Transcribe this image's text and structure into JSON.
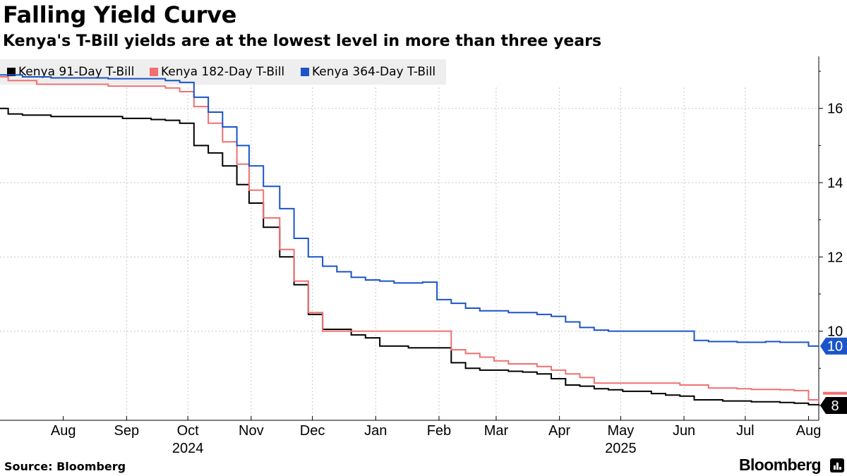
{
  "header": {
    "title": "Falling Yield Curve",
    "subtitle": "Kenya's T-Bill yields are at the lowest level in more than three years"
  },
  "footer": {
    "source": "Source: Bloomberg",
    "brand": "Bloomberg"
  },
  "chart_data": {
    "type": "line",
    "title": "Falling Yield Curve",
    "subtitle": "Kenya's T-Bill yields are at the lowest level in more than three years",
    "xlabel": "",
    "ylabel": "",
    "ylim": [
      7.6,
      17.4
    ],
    "yticks": [
      16,
      14,
      12,
      10
    ],
    "ytick_labels": [
      "16",
      "14",
      "12",
      "10"
    ],
    "x_start": "2024-07-01",
    "x_end": "2025-08-06",
    "xticks": [
      {
        "label": "Aug",
        "date": "2024-08-01"
      },
      {
        "label": "Sep",
        "date": "2024-09-01"
      },
      {
        "label": "Oct",
        "date": "2024-10-01"
      },
      {
        "label": "Nov",
        "date": "2024-11-01"
      },
      {
        "label": "Dec",
        "date": "2024-12-01"
      },
      {
        "label": "Jan",
        "date": "2025-01-01"
      },
      {
        "label": "Feb",
        "date": "2025-02-01"
      },
      {
        "label": "Mar",
        "date": "2025-03-01"
      },
      {
        "label": "Apr",
        "date": "2025-04-01"
      },
      {
        "label": "May",
        "date": "2025-05-01"
      },
      {
        "label": "Jun",
        "date": "2025-06-01"
      },
      {
        "label": "Jul",
        "date": "2025-07-01"
      },
      {
        "label": "Aug",
        "date": "2025-08-01"
      }
    ],
    "year_labels": [
      {
        "label": "2024",
        "date": "2024-10-01"
      },
      {
        "label": "2025",
        "date": "2025-05-01"
      }
    ],
    "grid": true,
    "legend_position": "top-left",
    "end_labels": [
      {
        "text": "10",
        "value": 9.6,
        "color": "#1a54c8"
      },
      {
        "text": "8",
        "value": 8.0,
        "color": "#000000"
      }
    ],
    "series": [
      {
        "name": "Kenya 91-Day T-Bill",
        "color": "#000000",
        "points": [
          [
            "2024-07-01",
            16.0
          ],
          [
            "2024-07-05",
            15.85
          ],
          [
            "2024-07-12",
            15.82
          ],
          [
            "2024-07-26",
            15.78
          ],
          [
            "2024-08-30",
            15.73
          ],
          [
            "2024-09-13",
            15.7
          ],
          [
            "2024-09-20",
            15.68
          ],
          [
            "2024-09-27",
            15.6
          ],
          [
            "2024-10-04",
            15.0
          ],
          [
            "2024-10-11",
            14.8
          ],
          [
            "2024-10-18",
            14.45
          ],
          [
            "2024-10-25",
            13.95
          ],
          [
            "2024-10-31",
            13.45
          ],
          [
            "2024-11-07",
            12.8
          ],
          [
            "2024-11-15",
            12.0
          ],
          [
            "2024-11-22",
            11.25
          ],
          [
            "2024-11-29",
            10.45
          ],
          [
            "2024-12-06",
            10.05
          ],
          [
            "2024-12-20",
            9.9
          ],
          [
            "2024-12-27",
            9.82
          ],
          [
            "2025-01-03",
            9.6
          ],
          [
            "2025-01-17",
            9.55
          ],
          [
            "2025-01-31",
            9.55
          ],
          [
            "2025-02-07",
            9.15
          ],
          [
            "2025-02-14",
            9.0
          ],
          [
            "2025-02-21",
            8.95
          ],
          [
            "2025-03-07",
            8.92
          ],
          [
            "2025-03-14",
            8.9
          ],
          [
            "2025-03-21",
            8.85
          ],
          [
            "2025-03-28",
            8.72
          ],
          [
            "2025-04-04",
            8.55
          ],
          [
            "2025-04-11",
            8.52
          ],
          [
            "2025-04-18",
            8.45
          ],
          [
            "2025-04-25",
            8.42
          ],
          [
            "2025-05-02",
            8.38
          ],
          [
            "2025-05-16",
            8.32
          ],
          [
            "2025-05-23",
            8.28
          ],
          [
            "2025-05-30",
            8.25
          ],
          [
            "2025-06-06",
            8.15
          ],
          [
            "2025-06-20",
            8.12
          ],
          [
            "2025-07-04",
            8.1
          ],
          [
            "2025-07-18",
            8.08
          ],
          [
            "2025-07-25",
            8.06
          ],
          [
            "2025-08-01",
            8.02
          ],
          [
            "2025-08-06",
            8.0
          ]
        ]
      },
      {
        "name": "Kenya 182-Day T-Bill",
        "color": "#f07070",
        "points": [
          [
            "2024-07-01",
            16.85
          ],
          [
            "2024-07-05",
            16.75
          ],
          [
            "2024-07-19",
            16.65
          ],
          [
            "2024-08-23",
            16.6
          ],
          [
            "2024-09-20",
            16.55
          ],
          [
            "2024-09-27",
            16.45
          ],
          [
            "2024-10-04",
            16.05
          ],
          [
            "2024-10-11",
            15.6
          ],
          [
            "2024-10-18",
            15.1
          ],
          [
            "2024-10-25",
            14.5
          ],
          [
            "2024-10-31",
            13.8
          ],
          [
            "2024-11-07",
            13.05
          ],
          [
            "2024-11-15",
            12.2
          ],
          [
            "2024-11-22",
            11.35
          ],
          [
            "2024-11-29",
            10.5
          ],
          [
            "2024-12-06",
            10.0
          ],
          [
            "2025-01-31",
            10.0
          ],
          [
            "2025-02-07",
            9.5
          ],
          [
            "2025-02-14",
            9.4
          ],
          [
            "2025-02-21",
            9.3
          ],
          [
            "2025-02-28",
            9.2
          ],
          [
            "2025-03-07",
            9.12
          ],
          [
            "2025-03-21",
            9.05
          ],
          [
            "2025-03-28",
            8.95
          ],
          [
            "2025-04-04",
            8.85
          ],
          [
            "2025-04-11",
            8.75
          ],
          [
            "2025-04-18",
            8.6
          ],
          [
            "2025-05-02",
            8.6
          ],
          [
            "2025-05-30",
            8.55
          ],
          [
            "2025-06-13",
            8.47
          ],
          [
            "2025-06-27",
            8.45
          ],
          [
            "2025-07-04",
            8.43
          ],
          [
            "2025-07-18",
            8.42
          ],
          [
            "2025-07-25",
            8.4
          ],
          [
            "2025-08-01",
            8.15
          ],
          [
            "2025-08-06",
            8.1
          ]
        ]
      },
      {
        "name": "Kenya 364-Day T-Bill",
        "color": "#1a54c8",
        "points": [
          [
            "2024-07-01",
            16.9
          ],
          [
            "2024-07-12",
            16.85
          ],
          [
            "2024-07-26",
            16.82
          ],
          [
            "2024-08-23",
            16.8
          ],
          [
            "2024-09-20",
            16.75
          ],
          [
            "2024-09-27",
            16.7
          ],
          [
            "2024-10-04",
            16.3
          ],
          [
            "2024-10-11",
            15.9
          ],
          [
            "2024-10-18",
            15.5
          ],
          [
            "2024-10-25",
            15.0
          ],
          [
            "2024-10-31",
            14.45
          ],
          [
            "2024-11-07",
            13.9
          ],
          [
            "2024-11-15",
            13.3
          ],
          [
            "2024-11-22",
            12.5
          ],
          [
            "2024-11-29",
            12.0
          ],
          [
            "2024-12-06",
            11.75
          ],
          [
            "2024-12-13",
            11.6
          ],
          [
            "2024-12-20",
            11.45
          ],
          [
            "2024-12-27",
            11.38
          ],
          [
            "2025-01-03",
            11.35
          ],
          [
            "2025-01-10",
            11.3
          ],
          [
            "2025-01-24",
            11.32
          ],
          [
            "2025-01-31",
            10.85
          ],
          [
            "2025-02-07",
            10.75
          ],
          [
            "2025-02-14",
            10.62
          ],
          [
            "2025-02-21",
            10.55
          ],
          [
            "2025-03-07",
            10.5
          ],
          [
            "2025-03-21",
            10.45
          ],
          [
            "2025-03-28",
            10.4
          ],
          [
            "2025-04-04",
            10.25
          ],
          [
            "2025-04-11",
            10.1
          ],
          [
            "2025-04-18",
            10.03
          ],
          [
            "2025-04-25",
            10.0
          ],
          [
            "2025-05-30",
            10.0
          ],
          [
            "2025-06-06",
            9.75
          ],
          [
            "2025-06-13",
            9.72
          ],
          [
            "2025-06-27",
            9.7
          ],
          [
            "2025-07-11",
            9.72
          ],
          [
            "2025-07-18",
            9.7
          ],
          [
            "2025-07-25",
            9.7
          ],
          [
            "2025-08-01",
            9.6
          ],
          [
            "2025-08-06",
            9.6
          ]
        ]
      }
    ]
  }
}
